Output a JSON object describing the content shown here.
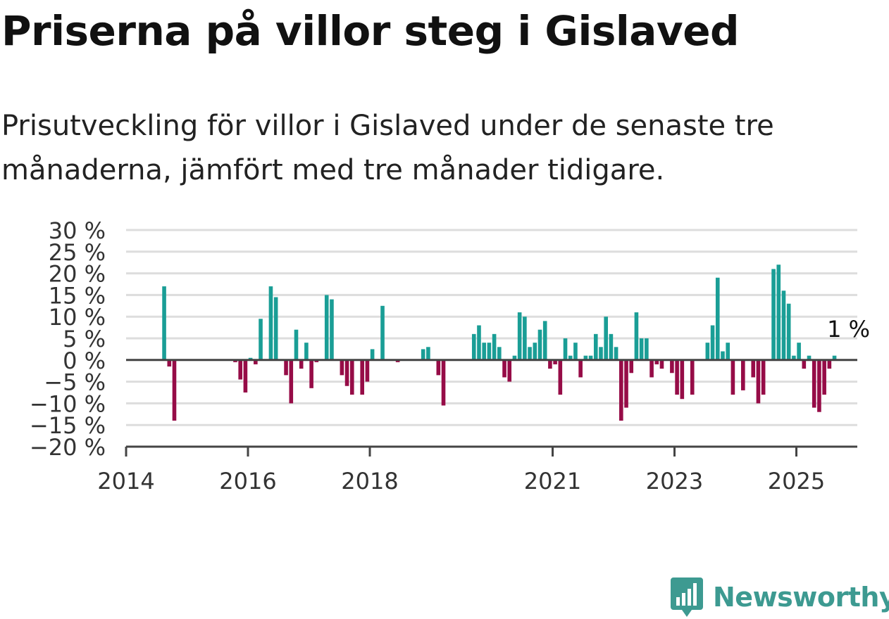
{
  "title": "Priserna på villor steg i Gislaved",
  "subtitle": "Prisutveckling för villor i Gislaved under de senaste tre månaderna, jämfört med tre månader tidigare.",
  "brand": "Newsworthy",
  "colors": {
    "positive": "#1a9e96",
    "negative": "#960c47",
    "grid": "#dddddd",
    "axis": "#444444",
    "text": "#333333",
    "brand": "#3d9a91"
  },
  "chart_data": {
    "type": "bar",
    "title": "Priserna på villor steg i Gislaved",
    "subtitle": "Prisutveckling för villor i Gislaved under de senaste tre månaderna, jämfört med tre månader tidigare.",
    "xlabel": "",
    "ylabel": "",
    "unit": "%",
    "ylim": [
      -20,
      30
    ],
    "yticks": [
      30,
      25,
      20,
      15,
      10,
      5,
      0,
      -5,
      -10,
      -15,
      -20
    ],
    "ytick_labels": [
      "30 %",
      "25 %",
      "20 %",
      "15 %",
      "10 %",
      "5 %",
      "0 %",
      "−5 %",
      "−10 %",
      "−15 %",
      "−20 %"
    ],
    "xlim": [
      "2014-01",
      "2026-01"
    ],
    "xticks": [
      "2014-01",
      "2016-01",
      "2018-01",
      "2021-01",
      "2023-01",
      "2025-01"
    ],
    "xtick_labels": [
      "2014",
      "2016",
      "2018",
      "2021",
      "2023",
      "2025"
    ],
    "grid": true,
    "annotations": [
      {
        "label": "1 %",
        "x": "2025-06"
      }
    ],
    "series": [
      {
        "points": [
          {
            "x": "2014-08",
            "y": 17
          },
          {
            "x": "2014-09",
            "y": -1.5
          },
          {
            "x": "2014-10",
            "y": -14
          },
          {
            "x": "2015-10",
            "y": -0.5
          },
          {
            "x": "2015-11",
            "y": -4.5
          },
          {
            "x": "2015-12",
            "y": -7.5
          },
          {
            "x": "2016-01",
            "y": 0.5
          },
          {
            "x": "2016-02",
            "y": -1
          },
          {
            "x": "2016-03",
            "y": 9.5
          },
          {
            "x": "2016-05",
            "y": 17
          },
          {
            "x": "2016-06",
            "y": 14.5
          },
          {
            "x": "2016-08",
            "y": -3.5
          },
          {
            "x": "2016-09",
            "y": -10
          },
          {
            "x": "2016-10",
            "y": 7
          },
          {
            "x": "2016-11",
            "y": -2
          },
          {
            "x": "2016-12",
            "y": 4
          },
          {
            "x": "2017-01",
            "y": -6.5
          },
          {
            "x": "2017-02",
            "y": -0.5
          },
          {
            "x": "2017-04",
            "y": 15
          },
          {
            "x": "2017-05",
            "y": 14
          },
          {
            "x": "2017-07",
            "y": -3.5
          },
          {
            "x": "2017-08",
            "y": -6
          },
          {
            "x": "2017-09",
            "y": -8
          },
          {
            "x": "2017-11",
            "y": -8
          },
          {
            "x": "2017-12",
            "y": -5
          },
          {
            "x": "2018-01",
            "y": 2.5
          },
          {
            "x": "2018-03",
            "y": 12.5
          },
          {
            "x": "2018-06",
            "y": -0.5
          },
          {
            "x": "2018-11",
            "y": 2.5
          },
          {
            "x": "2018-12",
            "y": 3
          },
          {
            "x": "2019-02",
            "y": -3.5
          },
          {
            "x": "2019-03",
            "y": -10.5
          },
          {
            "x": "2019-09",
            "y": 6
          },
          {
            "x": "2019-10",
            "y": 8
          },
          {
            "x": "2019-11",
            "y": 4
          },
          {
            "x": "2019-12",
            "y": 4
          },
          {
            "x": "2020-01",
            "y": 6
          },
          {
            "x": "2020-02",
            "y": 3
          },
          {
            "x": "2020-03",
            "y": -4
          },
          {
            "x": "2020-04",
            "y": -5
          },
          {
            "x": "2020-05",
            "y": 1
          },
          {
            "x": "2020-06",
            "y": 11
          },
          {
            "x": "2020-07",
            "y": 10
          },
          {
            "x": "2020-08",
            "y": 3
          },
          {
            "x": "2020-09",
            "y": 4
          },
          {
            "x": "2020-10",
            "y": 7
          },
          {
            "x": "2020-11",
            "y": 9
          },
          {
            "x": "2020-12",
            "y": -2
          },
          {
            "x": "2021-01",
            "y": -1
          },
          {
            "x": "2021-02",
            "y": -8
          },
          {
            "x": "2021-03",
            "y": 5
          },
          {
            "x": "2021-04",
            "y": 1
          },
          {
            "x": "2021-05",
            "y": 4
          },
          {
            "x": "2021-06",
            "y": -4
          },
          {
            "x": "2021-07",
            "y": 1
          },
          {
            "x": "2021-08",
            "y": 1
          },
          {
            "x": "2021-09",
            "y": 6
          },
          {
            "x": "2021-10",
            "y": 3
          },
          {
            "x": "2021-11",
            "y": 10
          },
          {
            "x": "2021-12",
            "y": 6
          },
          {
            "x": "2022-01",
            "y": 3
          },
          {
            "x": "2022-02",
            "y": -14
          },
          {
            "x": "2022-03",
            "y": -11
          },
          {
            "x": "2022-04",
            "y": -3
          },
          {
            "x": "2022-05",
            "y": 11
          },
          {
            "x": "2022-06",
            "y": 5
          },
          {
            "x": "2022-07",
            "y": 5
          },
          {
            "x": "2022-08",
            "y": -4
          },
          {
            "x": "2022-09",
            "y": -1
          },
          {
            "x": "2022-10",
            "y": -2
          },
          {
            "x": "2022-12",
            "y": -3
          },
          {
            "x": "2023-01",
            "y": -8
          },
          {
            "x": "2023-02",
            "y": -9
          },
          {
            "x": "2023-04",
            "y": -8
          },
          {
            "x": "2023-07",
            "y": 4
          },
          {
            "x": "2023-08",
            "y": 8
          },
          {
            "x": "2023-09",
            "y": 19
          },
          {
            "x": "2023-10",
            "y": 2
          },
          {
            "x": "2023-11",
            "y": 4
          },
          {
            "x": "2023-12",
            "y": -8
          },
          {
            "x": "2024-02",
            "y": -7
          },
          {
            "x": "2024-04",
            "y": -4
          },
          {
            "x": "2024-05",
            "y": -10
          },
          {
            "x": "2024-06",
            "y": -8
          },
          {
            "x": "2024-08",
            "y": 21
          },
          {
            "x": "2024-09",
            "y": 22
          },
          {
            "x": "2024-10",
            "y": 16
          },
          {
            "x": "2024-11",
            "y": 13
          },
          {
            "x": "2024-12",
            "y": 1
          },
          {
            "x": "2025-01",
            "y": 4
          },
          {
            "x": "2025-02",
            "y": -2
          },
          {
            "x": "2025-03",
            "y": 1
          },
          {
            "x": "2025-04",
            "y": -11
          },
          {
            "x": "2025-05",
            "y": -12
          },
          {
            "x": "2025-06",
            "y": -8
          },
          {
            "x": "2025-07",
            "y": -2
          },
          {
            "x": "2025-08",
            "y": 1
          }
        ]
      }
    ]
  }
}
